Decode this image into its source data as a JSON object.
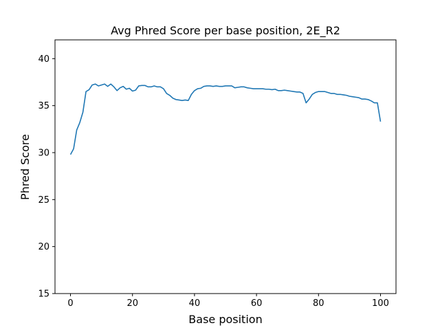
{
  "chart_data": {
    "type": "line",
    "title": "Avg Phred Score per base position, 2E_R2",
    "xlabel": "Base position",
    "ylabel": "Phred Score",
    "xlim": [
      -5,
      105
    ],
    "ylim": [
      15,
      42
    ],
    "xticks": [
      0,
      20,
      40,
      60,
      80,
      100
    ],
    "yticks": [
      15,
      20,
      25,
      30,
      35,
      40
    ],
    "grid": false,
    "line_color": "#1f77b4",
    "series": [
      {
        "x": [
          0,
          1,
          2,
          3,
          4,
          5,
          6,
          7,
          8,
          9,
          10,
          11,
          12,
          13,
          14,
          15,
          16,
          17,
          18,
          19,
          20,
          21,
          22,
          23,
          24,
          25,
          26,
          27,
          28,
          29,
          30,
          31,
          32,
          33,
          34,
          35,
          36,
          37,
          38,
          39,
          40,
          41,
          42,
          43,
          44,
          45,
          46,
          47,
          48,
          49,
          50,
          51,
          52,
          53,
          54,
          55,
          56,
          57,
          58,
          59,
          60,
          61,
          62,
          63,
          64,
          65,
          66,
          67,
          68,
          69,
          70,
          71,
          72,
          73,
          74,
          75,
          76,
          77,
          78,
          79,
          80,
          81,
          82,
          83,
          84,
          85,
          86,
          87,
          88,
          89,
          90,
          91,
          92,
          93,
          94,
          95,
          96,
          97,
          98,
          99,
          100
        ],
        "values": [
          29.8,
          30.4,
          32.4,
          33.2,
          34.3,
          36.5,
          36.7,
          37.2,
          37.3,
          37.1,
          37.2,
          37.3,
          37.05,
          37.3,
          37.0,
          36.6,
          36.9,
          37.05,
          36.75,
          36.85,
          36.55,
          36.65,
          37.1,
          37.15,
          37.15,
          37.0,
          37.0,
          37.1,
          37.0,
          37.0,
          36.8,
          36.3,
          36.1,
          35.8,
          35.65,
          35.6,
          35.55,
          35.6,
          35.55,
          36.2,
          36.6,
          36.8,
          36.85,
          37.05,
          37.1,
          37.1,
          37.05,
          37.1,
          37.05,
          37.05,
          37.1,
          37.1,
          37.1,
          36.9,
          36.95,
          37.0,
          37.0,
          36.9,
          36.85,
          36.8,
          36.8,
          36.8,
          36.8,
          36.75,
          36.75,
          36.7,
          36.75,
          36.6,
          36.6,
          36.65,
          36.6,
          36.55,
          36.5,
          36.45,
          36.45,
          36.3,
          35.3,
          35.7,
          36.2,
          36.4,
          36.5,
          36.5,
          36.5,
          36.4,
          36.3,
          36.3,
          36.2,
          36.2,
          36.15,
          36.1,
          36.0,
          35.95,
          35.9,
          35.85,
          35.7,
          35.7,
          35.65,
          35.5,
          35.3,
          35.3,
          33.3
        ]
      }
    ]
  }
}
